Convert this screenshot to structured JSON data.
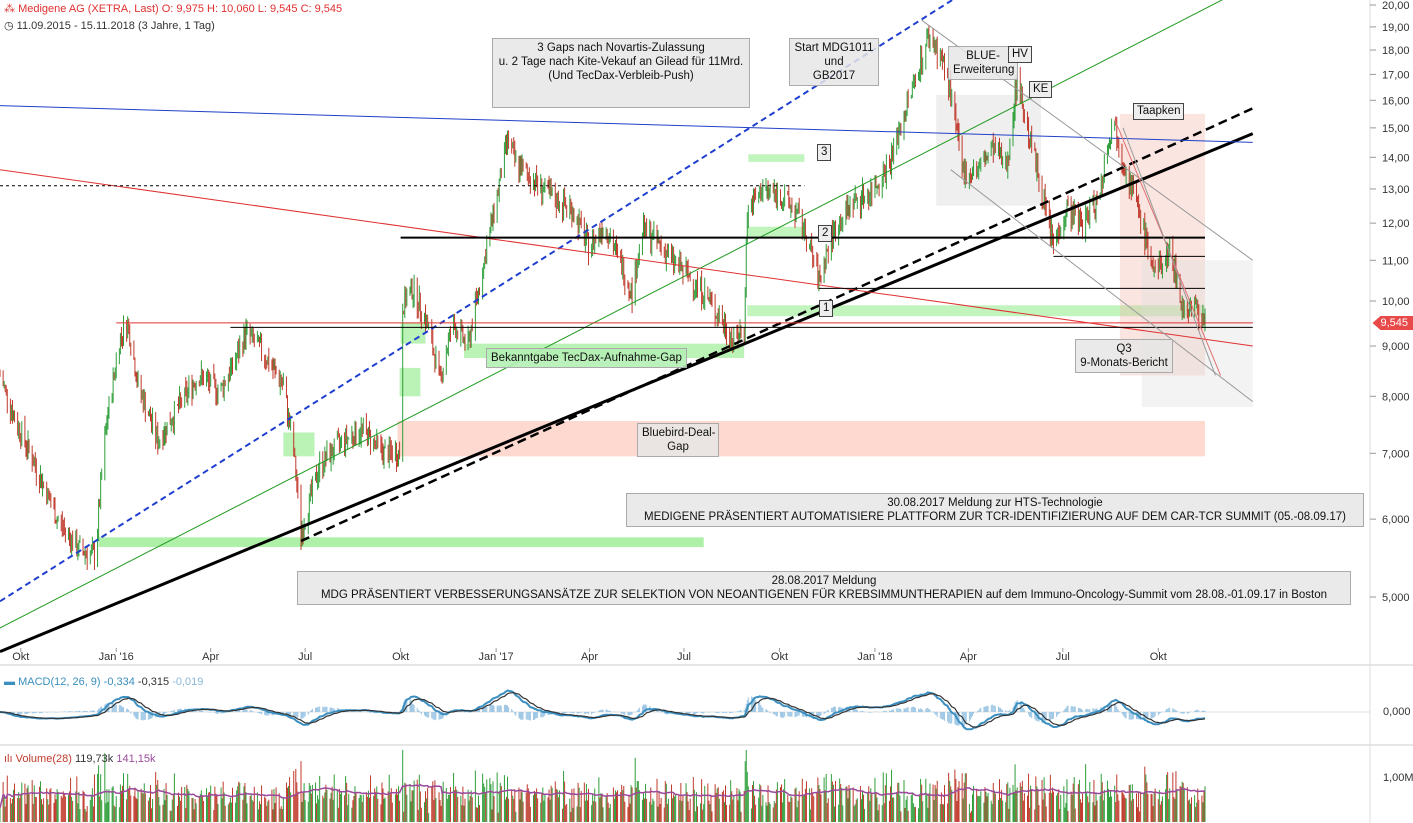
{
  "header": {
    "title": "Medigene AG (XETRA, Last)",
    "ohlc": "O: 9,975  H: 10,060  L: 9,545  C: 9,545",
    "range": "11.09.2015 - 15.11.2018  (3 Jahre, 1 Tag)"
  },
  "last_price_tag": "9,545",
  "annotations": {
    "gaps_novartis": [
      "3 Gaps nach Novartis-Zulassung",
      "u. 2 Tage nach Kite-Vekauf an Gilead für 11Mrd.",
      "(Und TecDax-Verbleib-Push)"
    ],
    "start_mdg": [
      "Start MDG1011",
      "und",
      "GB2017"
    ],
    "blue": [
      "BLUE-",
      "Erweiterung"
    ],
    "hv": "HV",
    "ke": "KE",
    "taapken": "Taapken",
    "gap3": "3",
    "gap2": "2",
    "gap1": "1",
    "tecdax": "Bekanntgabe TecDax-Aufnahme-Gap",
    "bluebird": [
      "Bluebird-Deal-",
      "Gap"
    ],
    "q3": [
      "Q3",
      "9-Monats-Bericht"
    ],
    "hts": [
      "30.08.2017 Meldung zur HTS-Technologie",
      "MEDIGENE PRÄSENTIERT AUTOMATISIERE PLATTFORM ZUR TCR-IDENTIFIZIERUNG AUF DEM CAR-TCR SUMMIT (05.-08.09.17)"
    ],
    "neo": [
      "28.08.2017 Meldung",
      "MDG PRÄSENTIERT VERBESSERUNGSANSÄTZE ZUR SELEKTION VON NEOANTIGENEN FÜR KREBSIMMUNTHERAPIEN auf dem Immuno-Oncology-Summit vom 28.08.-01.09.17 in Boston"
    ]
  },
  "indicators": {
    "macd_label": "MACD(12, 26, 9)",
    "macd_values": [
      "-0,334",
      "-0,315",
      "-0,019"
    ],
    "macd_axis": [
      "0,000"
    ],
    "volume_label": "Volume(28)",
    "volume_values": [
      "119,73k",
      "141,15k"
    ],
    "volume_axis": [
      "1,00M"
    ]
  },
  "colors": {
    "up": "#2e9e3a",
    "down": "#c0392b",
    "macd": "#3a8fc0",
    "signal": "#333333",
    "vol_ma": "#9b4a9b",
    "price_tag": "#e84a4a"
  },
  "chart_data": {
    "type": "candlestick",
    "title": "Medigene AG (XETRA, Last)",
    "x_range": [
      "2015-09-11",
      "2018-11-15"
    ],
    "x_tick_labels": [
      "Okt",
      "Jan '16",
      "Apr",
      "Jul",
      "Okt",
      "Jan '17",
      "Apr",
      "Jul",
      "Okt",
      "Jan '18",
      "Apr",
      "Jul",
      "Okt"
    ],
    "y_scale": "log",
    "y_range": [
      4.3,
      20
    ],
    "y_tick_labels": [
      "20,00",
      "19,00",
      "18,00",
      "17,00",
      "16,00",
      "15,00",
      "14,00",
      "13,00",
      "12,00",
      "11,00",
      "10,00",
      "9,000",
      "8,000",
      "7,000",
      "6,000",
      "5,000"
    ],
    "last": 9.545,
    "price_path": [
      [
        "2015-09-11",
        8.4
      ],
      [
        "2015-09-25",
        7.6
      ],
      [
        "2015-10-15",
        6.8
      ],
      [
        "2015-11-05",
        6.0
      ],
      [
        "2015-11-25",
        5.6
      ],
      [
        "2015-12-12",
        5.5
      ],
      [
        "2015-12-22",
        7.4
      ],
      [
        "2016-01-05",
        9.2
      ],
      [
        "2016-01-12",
        9.5
      ],
      [
        "2016-01-22",
        8.2
      ],
      [
        "2016-02-10",
        7.2
      ],
      [
        "2016-03-01",
        7.8
      ],
      [
        "2016-03-20",
        8.4
      ],
      [
        "2016-04-10",
        8.1
      ],
      [
        "2016-04-25",
        8.7
      ],
      [
        "2016-05-05",
        9.3
      ],
      [
        "2016-05-20",
        8.9
      ],
      [
        "2016-06-10",
        8.2
      ],
      [
        "2016-06-20",
        7.0
      ],
      [
        "2016-06-27",
        5.8
      ],
      [
        "2016-07-15",
        6.8
      ],
      [
        "2016-08-05",
        7.2
      ],
      [
        "2016-08-25",
        7.4
      ],
      [
        "2016-09-15",
        7.0
      ],
      [
        "2016-09-30",
        7.0
      ],
      [
        "2016-10-03",
        9.9
      ],
      [
        "2016-10-12",
        10.3
      ],
      [
        "2016-10-25",
        9.6
      ],
      [
        "2016-11-08",
        8.3
      ],
      [
        "2016-11-20",
        9.5
      ],
      [
        "2016-12-05",
        9.0
      ],
      [
        "2016-12-20",
        10.9
      ],
      [
        "2017-01-02",
        12.8
      ],
      [
        "2017-01-12",
        14.6
      ],
      [
        "2017-01-20",
        13.8
      ],
      [
        "2017-02-05",
        13.3
      ],
      [
        "2017-02-25",
        12.7
      ],
      [
        "2017-03-15",
        12.4
      ],
      [
        "2017-04-01",
        11.3
      ],
      [
        "2017-04-15",
        12.0
      ],
      [
        "2017-05-01",
        10.9
      ],
      [
        "2017-05-12",
        10.2
      ],
      [
        "2017-05-22",
        11.8
      ],
      [
        "2017-06-05",
        11.5
      ],
      [
        "2017-06-20",
        11.0
      ],
      [
        "2017-07-05",
        10.6
      ],
      [
        "2017-07-20",
        10.2
      ],
      [
        "2017-08-05",
        9.6
      ],
      [
        "2017-08-18",
        9.1
      ],
      [
        "2017-08-28",
        9.4
      ],
      [
        "2017-08-31",
        12.3
      ],
      [
        "2017-09-15",
        13.0
      ],
      [
        "2017-10-01",
        12.8
      ],
      [
        "2017-10-15",
        12.4
      ],
      [
        "2017-10-25",
        11.8
      ],
      [
        "2017-11-08",
        10.5
      ],
      [
        "2017-11-20",
        11.6
      ],
      [
        "2017-12-10",
        12.6
      ],
      [
        "2017-12-28",
        12.9
      ],
      [
        "2018-01-15",
        13.8
      ],
      [
        "2018-01-28",
        15.3
      ],
      [
        "2018-02-10",
        17.0
      ],
      [
        "2018-02-22",
        18.6
      ],
      [
        "2018-03-05",
        17.8
      ],
      [
        "2018-03-15",
        16.3
      ],
      [
        "2018-03-26",
        13.5
      ],
      [
        "2018-04-10",
        13.6
      ],
      [
        "2018-04-25",
        14.3
      ],
      [
        "2018-05-08",
        13.7
      ],
      [
        "2018-05-18",
        16.8
      ],
      [
        "2018-05-28",
        15.0
      ],
      [
        "2018-06-10",
        13.0
      ],
      [
        "2018-06-22",
        11.4
      ],
      [
        "2018-07-05",
        12.4
      ],
      [
        "2018-07-20",
        12.0
      ],
      [
        "2018-08-05",
        12.8
      ],
      [
        "2018-08-18",
        15.3
      ],
      [
        "2018-09-01",
        13.5
      ],
      [
        "2018-09-15",
        12.0
      ],
      [
        "2018-09-28",
        10.6
      ],
      [
        "2018-10-12",
        11.3
      ],
      [
        "2018-10-25",
        9.8
      ],
      [
        "2018-11-05",
        9.9
      ],
      [
        "2018-11-15",
        9.545
      ]
    ]
  }
}
